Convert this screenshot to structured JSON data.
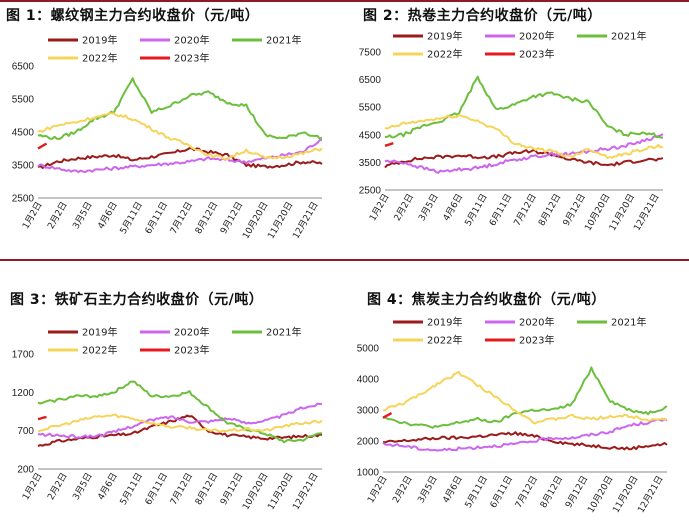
{
  "colors": {
    "rule": "#8b1a2b",
    "series": [
      "#9b1a1a",
      "#cc66ee",
      "#6cbf3c",
      "#f5d45a",
      "#e41a1c"
    ]
  },
  "chart_data": [
    {
      "id": "fig1",
      "type": "line",
      "title": "图 1：螺纹钢主力合约收盘价（元/吨）",
      "ylim": [
        2500,
        6500
      ],
      "yticks": [
        2500,
        3500,
        4500,
        5500,
        6500
      ],
      "x_labels": [
        "1月2日",
        "2月2日",
        "3月5日",
        "4月6日",
        "5月11日",
        "6月11日",
        "7月12日",
        "8月12日",
        "9月12日",
        "10月20日",
        "11月20日",
        "12月21日"
      ],
      "legend": [
        "2019年",
        "2020年",
        "2021年",
        "2022年",
        "2023年"
      ],
      "legend_position": "top",
      "series": [
        {
          "name": "2019年",
          "values": [
            3400,
            3600,
            3700,
            3750,
            3800,
            3650,
            3750,
            3850,
            4000,
            3900,
            3800,
            3500,
            3450,
            3500,
            3600,
            3550
          ]
        },
        {
          "name": "2020年",
          "values": [
            3500,
            3400,
            3300,
            3350,
            3400,
            3450,
            3500,
            3550,
            3600,
            3700,
            3650,
            3600,
            3700,
            3800,
            3900,
            4300
          ]
        },
        {
          "name": "2021年",
          "values": [
            4400,
            4300,
            4500,
            4900,
            5100,
            6100,
            5100,
            5300,
            5600,
            5700,
            5400,
            5300,
            4400,
            4300,
            4500,
            4300
          ]
        },
        {
          "name": "2022年",
          "values": [
            4500,
            4700,
            4800,
            4950,
            5050,
            4900,
            4600,
            4300,
            4100,
            3800,
            3700,
            3950,
            3700,
            3750,
            3850,
            4000
          ]
        },
        {
          "name": "2023年",
          "values": [
            4000,
            4150
          ]
        }
      ]
    },
    {
      "id": "fig2",
      "type": "line",
      "title": "图 2：热卷主力合约收盘价（元/吨）",
      "ylim": [
        2500,
        7500
      ],
      "yticks": [
        2500,
        3500,
        4500,
        5500,
        6500,
        7500
      ],
      "x_labels": [
        "1月2日",
        "2月2日",
        "3月5日",
        "4月6日",
        "5月11日",
        "6月11日",
        "7月12日",
        "8月12日",
        "9月12日",
        "10月20日",
        "11月20日",
        "12月21日"
      ],
      "legend": [
        "2019年",
        "2020年",
        "2021年",
        "2022年",
        "2023年"
      ],
      "legend_position": "top",
      "series": [
        {
          "name": "2019年",
          "values": [
            3350,
            3550,
            3650,
            3700,
            3750,
            3700,
            3700,
            3850,
            3900,
            3800,
            3600,
            3500,
            3400,
            3500,
            3600,
            3600
          ]
        },
        {
          "name": "2020年",
          "values": [
            3550,
            3500,
            3300,
            3150,
            3250,
            3300,
            3450,
            3600,
            3700,
            3800,
            3800,
            3900,
            4000,
            4100,
            4300,
            4500
          ]
        },
        {
          "name": "2021年",
          "values": [
            4400,
            4500,
            4800,
            5000,
            5300,
            6600,
            5400,
            5600,
            5900,
            6000,
            5800,
            5700,
            4800,
            4500,
            4600,
            4400
          ]
        },
        {
          "name": "2022年",
          "values": [
            4700,
            4900,
            5000,
            5100,
            5200,
            5000,
            4700,
            4200,
            4000,
            3900,
            3700,
            4000,
            3700,
            3800,
            4000,
            4100
          ]
        },
        {
          "name": "2023年",
          "values": [
            4100,
            4200
          ]
        }
      ]
    },
    {
      "id": "fig3",
      "type": "line",
      "title": "图 3：铁矿石主力合约收盘价（元/吨）",
      "ylim": [
        200,
        1700
      ],
      "yticks": [
        200,
        700,
        1200,
        1700
      ],
      "x_labels": [
        "1月2日",
        "2月2日",
        "3月5日",
        "4月6日",
        "5月11日",
        "6月11日",
        "7月12日",
        "8月12日",
        "9月12日",
        "10月20日",
        "11月20日",
        "12月21日"
      ],
      "legend": [
        "2019年",
        "2020年",
        "2021年",
        "2022年",
        "2023年"
      ],
      "legend_position": "top",
      "series": [
        {
          "name": "2019年",
          "values": [
            500,
            560,
            590,
            620,
            640,
            660,
            750,
            820,
            900,
            700,
            640,
            620,
            600,
            610,
            630,
            640
          ]
        },
        {
          "name": "2020年",
          "values": [
            650,
            640,
            620,
            630,
            680,
            760,
            840,
            880,
            820,
            820,
            860,
            800,
            830,
            900,
            1000,
            1050
          ]
        },
        {
          "name": "2021年",
          "values": [
            1050,
            1100,
            1150,
            1150,
            1200,
            1350,
            1150,
            1150,
            1200,
            1000,
            800,
            720,
            660,
            560,
            580,
            680
          ]
        },
        {
          "name": "2022年",
          "values": [
            700,
            760,
            820,
            880,
            900,
            860,
            800,
            750,
            740,
            700,
            700,
            720,
            700,
            760,
            800,
            820
          ]
        },
        {
          "name": "2023年",
          "values": [
            850,
            880
          ]
        }
      ]
    },
    {
      "id": "fig4",
      "type": "line",
      "title": "图 4：焦炭主力合约收盘价（元/吨）",
      "ylim": [
        1000,
        5000
      ],
      "yticks": [
        1000,
        2000,
        3000,
        4000,
        5000
      ],
      "x_labels": [
        "1月2日",
        "2月2日",
        "3月5日",
        "4月6日",
        "5月11日",
        "6月11日",
        "7月12日",
        "8月12日",
        "9月12日",
        "10月20日",
        "11月20日",
        "12月21日"
      ],
      "legend": [
        "2019年",
        "2020年",
        "2021年",
        "2022年",
        "2023年"
      ],
      "legend_position": "top",
      "series": [
        {
          "name": "2019年",
          "values": [
            1950,
            2000,
            2050,
            2100,
            2100,
            2150,
            2200,
            2250,
            2150,
            2000,
            1900,
            1850,
            1800,
            1750,
            1850,
            1900
          ]
        },
        {
          "name": "2020年",
          "values": [
            1900,
            1850,
            1750,
            1700,
            1750,
            1800,
            1850,
            1900,
            2000,
            2100,
            2100,
            2200,
            2300,
            2500,
            2600,
            2700
          ]
        },
        {
          "name": "2021年",
          "values": [
            2800,
            2600,
            2500,
            2450,
            2600,
            2700,
            2600,
            2900,
            3000,
            3000,
            3200,
            4350,
            3300,
            3000,
            2900,
            3100
          ]
        },
        {
          "name": "2022年",
          "values": [
            3000,
            3200,
            3500,
            3900,
            4200,
            3800,
            3400,
            3000,
            2600,
            2700,
            2800,
            2700,
            2800,
            2800,
            2700,
            2700
          ]
        },
        {
          "name": "2023年",
          "values": [
            2750,
            2900
          ]
        }
      ]
    }
  ]
}
